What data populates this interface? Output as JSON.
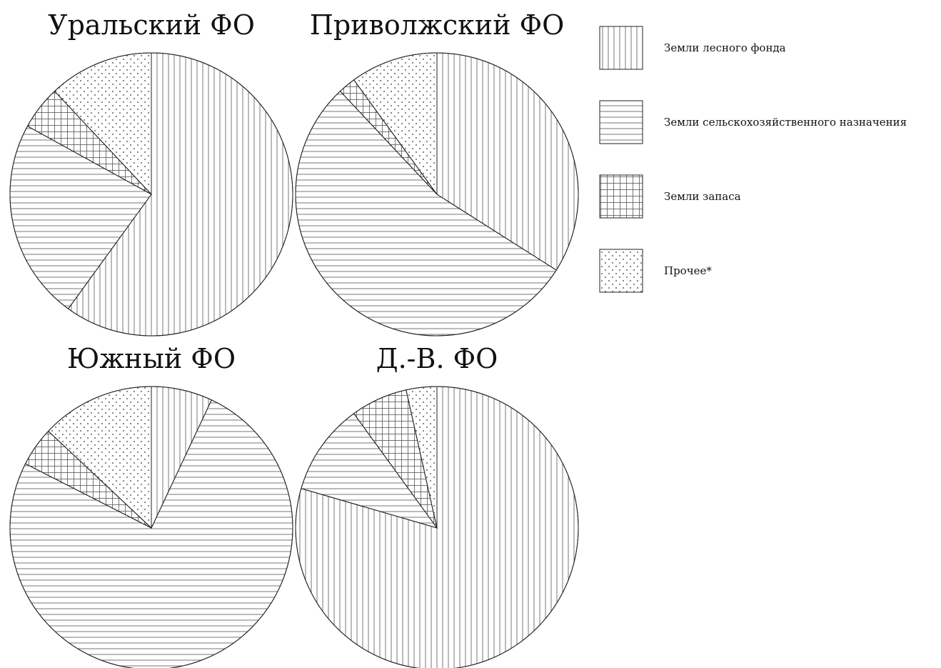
{
  "chart_data": {
    "type": "pie",
    "categories": [
      "Земли лесного фонда",
      "Земли сельскохозяйственного назначения",
      "Земли запаса",
      "Прочее*"
    ],
    "legend_placement": "top-right",
    "patterns": [
      "vertical-lines",
      "horizontal-lines",
      "grid",
      "dots"
    ],
    "charts": [
      {
        "title": "Уральский ФО",
        "values": [
          60.0,
          23.0,
          5.0,
          12.0
        ]
      },
      {
        "title": "Приволжский ФО",
        "values": [
          34.0,
          54.0,
          2.0,
          10.0
        ]
      },
      {
        "title": "Южный ФО",
        "values": [
          7.0,
          75.5,
          4.5,
          13.0
        ]
      },
      {
        "title": "Д.-В. ФО",
        "values": [
          79.5,
          10.5,
          6.5,
          3.5
        ]
      }
    ]
  }
}
